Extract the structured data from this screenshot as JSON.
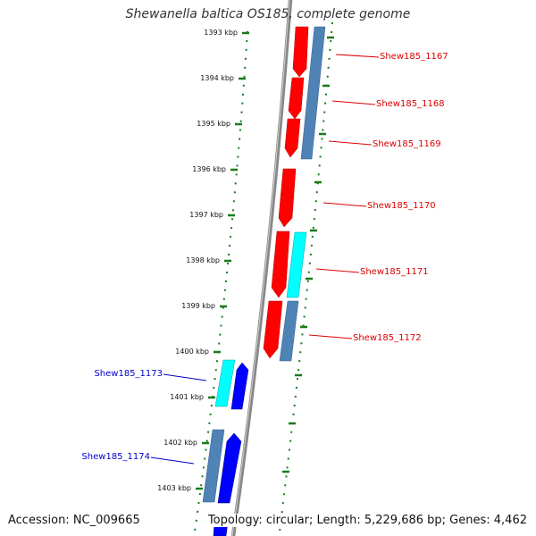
{
  "title": "Shewanella baltica OS185, complete genome",
  "footer": {
    "accession": "Accession: NC_009665",
    "topology": "Topology: circular; Length: 5,229,686 bp; Genes: 4,462"
  },
  "colors": {
    "forward_gene": "#ff0000",
    "reverse_gene": "#0000ff",
    "cyan_gene": "#00ffff",
    "steel_gene": "#4f83b5",
    "scale_ticks": "#1a7a1a",
    "backbone": "#888888",
    "right_label": "#dd0000",
    "left_label": "#0000cc"
  },
  "scale": {
    "unit": "kbp",
    "ticks": [
      "1393 kbp",
      "1394 kbp",
      "1395 kbp",
      "1396 kbp",
      "1397 kbp",
      "1398 kbp",
      "1399 kbp",
      "1400 kbp",
      "1401 kbp",
      "1402 kbp",
      "1403 kbp"
    ]
  },
  "genes": {
    "right": [
      "Shew185_1167",
      "Shew185_1168",
      "Shew185_1169",
      "Shew185_1170",
      "Shew185_1171",
      "Shew185_1172"
    ],
    "left": [
      "Shew185_1173",
      "Shew185_1174"
    ]
  }
}
